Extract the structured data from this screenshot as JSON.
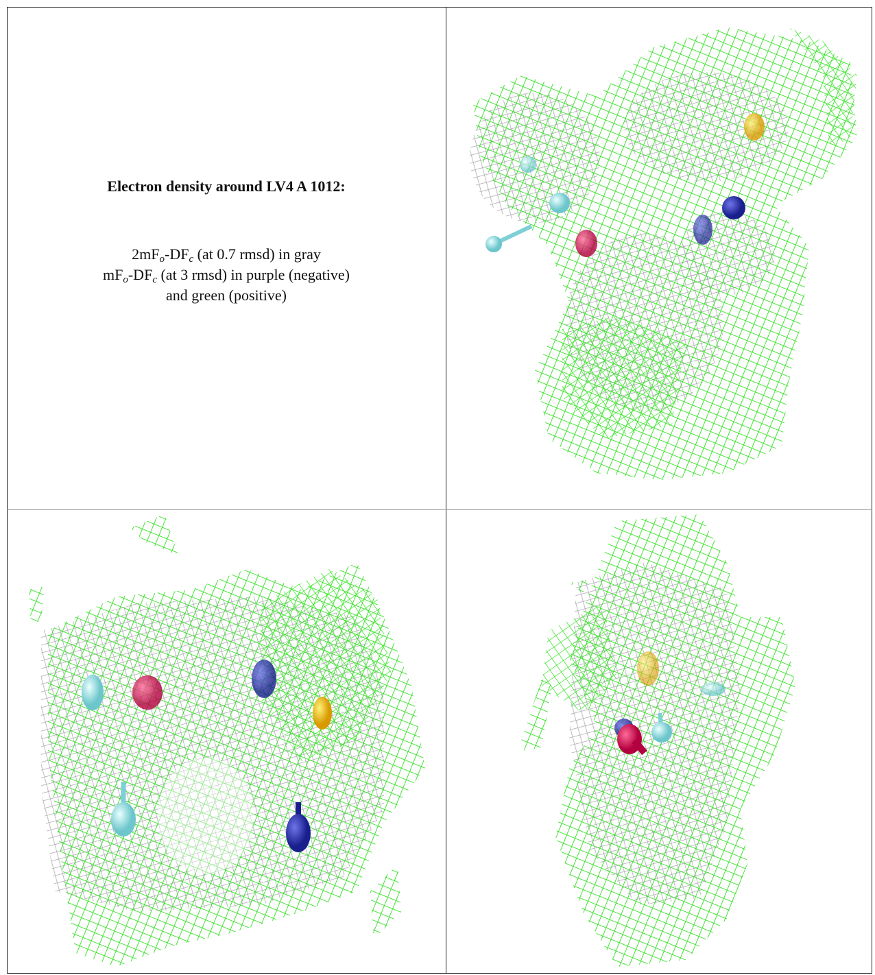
{
  "caption": {
    "title": "Electron density around LV4 A 1012:",
    "lines": [
      [
        "2mF",
        "o",
        "-DF",
        "c",
        " (at 0.7 rmsd) in gray"
      ],
      [
        "mF",
        "o",
        "-DF",
        "c",
        " (at 3 rmsd) in purple (negative)"
      ],
      [
        "and green (positive)"
      ]
    ]
  }
}
